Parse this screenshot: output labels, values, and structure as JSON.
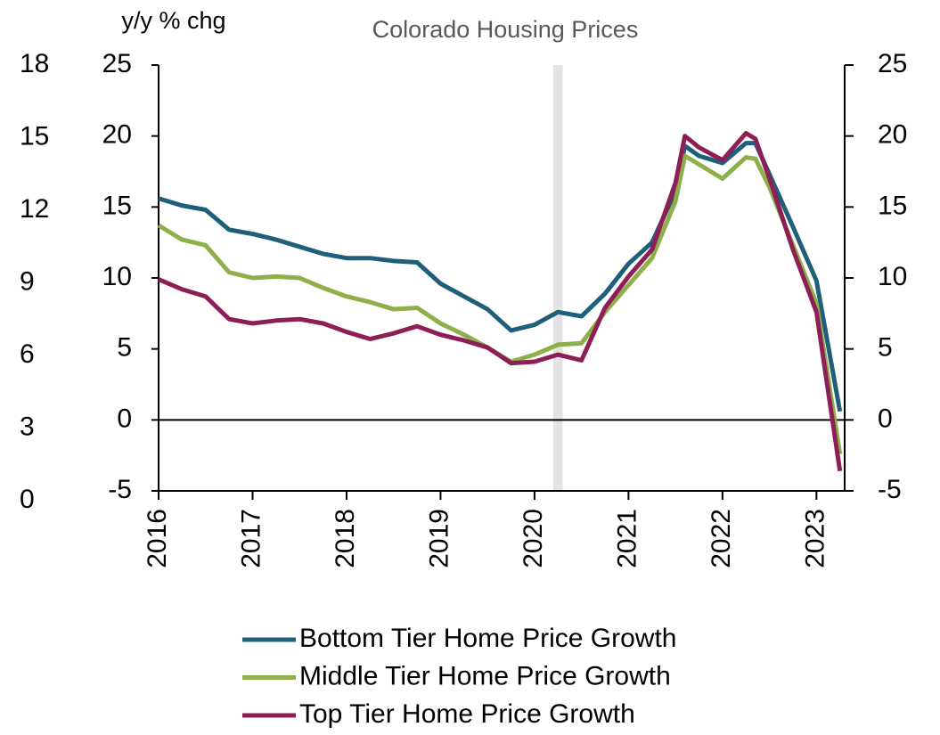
{
  "chart_data": {
    "type": "line",
    "title": "Colorado Housing Prices",
    "y_axis_label": "y/y % chg",
    "x": [
      2016.0,
      2016.25,
      2016.5,
      2016.75,
      2017.0,
      2017.25,
      2017.5,
      2017.75,
      2018.0,
      2018.25,
      2018.5,
      2018.75,
      2019.0,
      2019.25,
      2019.5,
      2019.75,
      2020.0,
      2020.25,
      2020.5,
      2020.75,
      2021.0,
      2021.25,
      2021.5,
      2021.6,
      2021.75,
      2022.0,
      2022.25,
      2022.35,
      2022.5,
      2022.75,
      2023.0,
      2023.25
    ],
    "series": [
      {
        "name": "Bottom Tier Home Price Growth",
        "color": "#1f5f7a",
        "values": [
          15.6,
          15.1,
          14.8,
          13.4,
          13.1,
          12.7,
          12.2,
          11.7,
          11.4,
          11.4,
          11.2,
          11.1,
          9.6,
          8.7,
          7.8,
          6.3,
          6.7,
          7.6,
          7.3,
          8.9,
          11.0,
          12.5,
          16.1,
          19.3,
          18.6,
          18.1,
          19.5,
          19.5,
          17.3,
          13.6,
          9.8,
          0.6
        ]
      },
      {
        "name": "Middle Tier Home Price Growth",
        "color": "#8db04a",
        "values": [
          13.7,
          12.7,
          12.3,
          10.4,
          10.0,
          10.1,
          10.0,
          9.3,
          8.7,
          8.3,
          7.8,
          7.9,
          6.8,
          6.0,
          5.1,
          4.1,
          4.6,
          5.3,
          5.4,
          7.6,
          9.5,
          11.4,
          15.4,
          18.6,
          18.0,
          17.0,
          18.5,
          18.4,
          16.4,
          12.3,
          8.2,
          -2.4
        ]
      },
      {
        "name": "Top Tier Home Price Growth",
        "color": "#8e1f56",
        "values": [
          9.9,
          9.2,
          8.7,
          7.1,
          6.8,
          7.0,
          7.1,
          6.8,
          6.2,
          5.7,
          6.1,
          6.6,
          6.0,
          5.6,
          5.1,
          4.0,
          4.1,
          4.6,
          4.2,
          7.9,
          10.1,
          12.0,
          16.7,
          20.0,
          19.2,
          18.3,
          20.2,
          19.8,
          17.0,
          12.0,
          7.6,
          -3.6
        ]
      }
    ],
    "shaded_region": [
      2020.2,
      2020.3
    ],
    "xlim": [
      2016,
      2023.3
    ],
    "xticks": [
      2016,
      2017,
      2018,
      2019,
      2020,
      2021,
      2022,
      2023
    ],
    "ylim": [
      -5,
      25
    ],
    "yticks": [
      -5,
      0,
      5,
      10,
      15,
      20,
      25
    ],
    "y2lim": [
      -5,
      25
    ],
    "y2ticks": [
      -5,
      0,
      5,
      10,
      15,
      20,
      25
    ],
    "y3lim": [
      0,
      18
    ],
    "y3ticks": [
      0,
      3,
      6,
      9,
      12,
      15,
      18
    ],
    "legend": "bottom"
  }
}
